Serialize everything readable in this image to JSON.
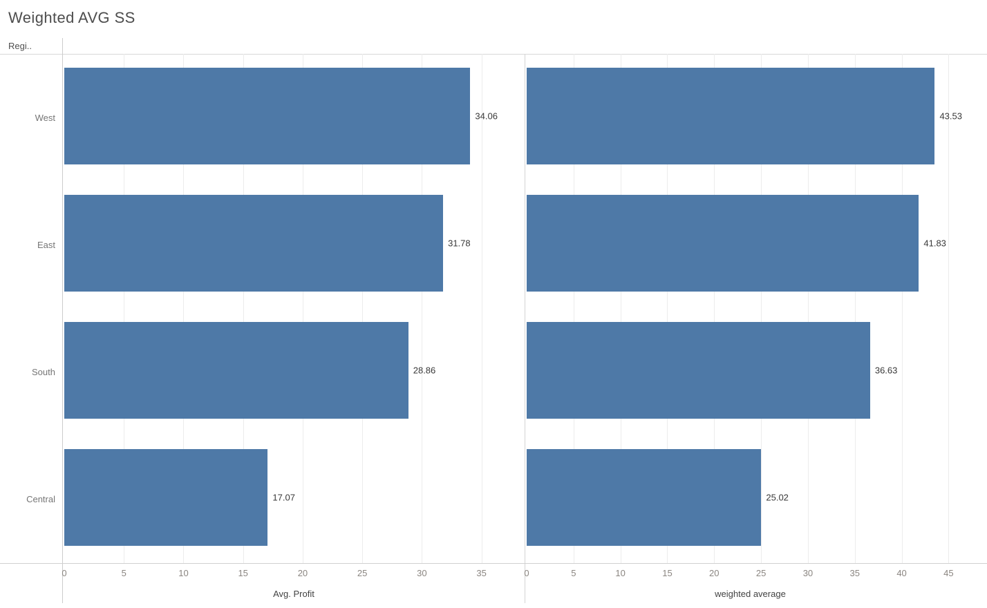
{
  "title": "Weighted AVG SS",
  "row_field": {
    "label": "Regi..",
    "sort_icon": "sort-descending-icon"
  },
  "colors": {
    "bar": "#4e79a7",
    "title_text": "#4d4d4d",
    "row_label_text": "#757575",
    "value_label_text": "#383838",
    "tick_text": "#8a8580",
    "gridline": "#ececec",
    "divider": "#d8d8d8"
  },
  "chart_data": {
    "type": "bar",
    "orientation": "horizontal",
    "grid": true,
    "legend": "none",
    "bar_color": "#4e79a7",
    "categories": [
      "West",
      "East",
      "South",
      "Central"
    ],
    "series": [
      {
        "name": "Avg. Profit",
        "axis_title": "Avg. Profit",
        "axis_sort_icon": false,
        "values": [
          34.06,
          31.78,
          28.86,
          17.07
        ],
        "value_labels": [
          "34.06",
          "31.78",
          "28.86",
          "17.07"
        ],
        "ticks": [
          0,
          5,
          10,
          15,
          20,
          25,
          30,
          35
        ],
        "xlim": [
          0,
          38.5
        ]
      },
      {
        "name": "weighted average",
        "axis_title": "weighted average",
        "axis_sort_icon": true,
        "values": [
          43.53,
          41.83,
          36.63,
          25.02
        ],
        "value_labels": [
          "43.53",
          "41.83",
          "36.63",
          "25.02"
        ],
        "ticks": [
          0,
          5,
          10,
          15,
          20,
          25,
          30,
          35,
          40,
          45
        ],
        "xlim": [
          0,
          49.1
        ]
      }
    ]
  },
  "layout_note_values_visible_only": true
}
